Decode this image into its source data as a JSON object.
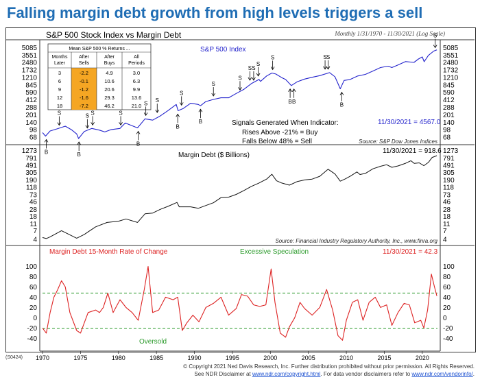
{
  "page_title": "Falling margin debt growth from high levels triggers a sell",
  "panel1_title": "S&P 500 Stock Index vs Margin Debt",
  "range_note": "Monthly 1/31/1970 - 11/30/2021 (Log Scale)",
  "series1_label": "S&P 500 Index",
  "series1_last": "11/30/2021 = 4567.0",
  "signals": {
    "heading": "Signals Generated When Indicator:",
    "buy": "Rises Above -21% = Buy",
    "sell": "Falls Below 48% = Sell"
  },
  "source1": "Source: S&P Dow Jones Indices",
  "returns_table": {
    "title": "Mean S&P 500 % Returns ...",
    "headers": [
      "Months\nLater",
      "After\nSells",
      "After\nBuys",
      "All\nPeriods"
    ],
    "rows": [
      [
        "3",
        "-2.2",
        "4.9",
        "3.0"
      ],
      [
        "6",
        "-0.1",
        "10.6",
        "6.3"
      ],
      [
        "9",
        "-1.2",
        "20.6",
        "9.9"
      ],
      [
        "12",
        "-1.6",
        "29.3",
        "13.6"
      ],
      [
        "18",
        "-7.2",
        "46.2",
        "21.0"
      ]
    ],
    "highlight_color": "#f5a623"
  },
  "series2_label": "Margin Debt ($ Billions)",
  "series2_last": "11/30/2021 = 918.6",
  "source2": "Source: Financial Industry Regulatory Authority, Inc., www.finra.org",
  "series3_label": "Margin Debt 15-Month Rate of Change",
  "series3_last": "11/30/2021 = 42.3",
  "excessive_label": "Excessive Speculation",
  "oversold_label": "Oversold",
  "chart_code": "(S0424)",
  "footer": {
    "line1": "© Copyright 2021 Ned Davis Research, Inc. Further distribution prohibited without prior permission. All Rights Reserved.",
    "line2_pre": "See NDR Disclaimer at ",
    "link1": "www.ndr.com/copyright.html",
    "line2_mid": ". For data vendor disclaimers refer to ",
    "link2": "www.ndr.com/vendorinfo/",
    "line2_post": "."
  },
  "colors": {
    "title": "#1f6db4",
    "sp500": "#2222cc",
    "margin": "#111111",
    "roc": "#dd2222",
    "threshold": "#2a9a2a",
    "table_highlight": "#f5a623"
  },
  "chart_data": [
    {
      "type": "line",
      "title": "S&P 500 Stock Index",
      "scale": "log",
      "yticks": [
        68,
        98,
        140,
        201,
        288,
        412,
        590,
        845,
        1210,
        1732,
        2480,
        3551,
        5085
      ],
      "ylim": [
        62,
        5700
      ],
      "xlim": [
        1970.0,
        2022.0
      ],
      "points": [
        [
          1970.0,
          85
        ],
        [
          1970.4,
          72
        ],
        [
          1971.0,
          92
        ],
        [
          1972.0,
          103
        ],
        [
          1973.0,
          116
        ],
        [
          1973.8,
          98
        ],
        [
          1974.5,
          80
        ],
        [
          1974.75,
          64
        ],
        [
          1975.5,
          90
        ],
        [
          1976.5,
          104
        ],
        [
          1977.5,
          96
        ],
        [
          1978.2,
          88
        ],
        [
          1979.0,
          98
        ],
        [
          1980.2,
          104
        ],
        [
          1980.9,
          135
        ],
        [
          1982.5,
          107
        ],
        [
          1983.5,
          165
        ],
        [
          1984.5,
          155
        ],
        [
          1985.5,
          190
        ],
        [
          1986.5,
          245
        ],
        [
          1987.6,
          330
        ],
        [
          1987.85,
          245
        ],
        [
          1988.5,
          270
        ],
        [
          1989.5,
          350
        ],
        [
          1990.5,
          330
        ],
        [
          1990.8,
          310
        ],
        [
          1991.5,
          380
        ],
        [
          1992.5,
          420
        ],
        [
          1993.5,
          455
        ],
        [
          1994.5,
          455
        ],
        [
          1995.5,
          560
        ],
        [
          1996.5,
          680
        ],
        [
          1997.5,
          900
        ],
        [
          1998.5,
          1100
        ],
        [
          1998.7,
          1000
        ],
        [
          1999.5,
          1300
        ],
        [
          2000.2,
          1500
        ],
        [
          2000.7,
          1430
        ],
        [
          2001.5,
          1200
        ],
        [
          2002.0,
          1100
        ],
        [
          2002.75,
          820
        ],
        [
          2003.5,
          980
        ],
        [
          2004.5,
          1120
        ],
        [
          2005.5,
          1220
        ],
        [
          2006.5,
          1320
        ],
        [
          2007.8,
          1530
        ],
        [
          2008.5,
          1250
        ],
        [
          2008.9,
          900
        ],
        [
          2009.2,
          700
        ],
        [
          2009.7,
          1050
        ],
        [
          2010.5,
          1100
        ],
        [
          2011.5,
          1300
        ],
        [
          2012.5,
          1400
        ],
        [
          2013.5,
          1650
        ],
        [
          2014.5,
          1950
        ],
        [
          2015.5,
          2080
        ],
        [
          2016.0,
          1950
        ],
        [
          2016.8,
          2200
        ],
        [
          2017.8,
          2600
        ],
        [
          2018.9,
          2500
        ],
        [
          2019.5,
          2950
        ],
        [
          2020.0,
          3250
        ],
        [
          2020.25,
          2580
        ],
        [
          2020.8,
          3500
        ],
        [
          2021.5,
          4300
        ],
        [
          2021.92,
          4567
        ]
      ],
      "signals": [
        {
          "x": 1970.5,
          "type": "B"
        },
        {
          "x": 1972.2,
          "type": "S"
        },
        {
          "x": 1974.8,
          "type": "B"
        },
        {
          "x": 1975.9,
          "type": "S"
        },
        {
          "x": 1976.6,
          "type": "S"
        },
        {
          "x": 1980.3,
          "type": "S"
        },
        {
          "x": 1982.6,
          "type": "B"
        },
        {
          "x": 1983.6,
          "type": "S"
        },
        {
          "x": 1985.1,
          "type": "S"
        },
        {
          "x": 1987.8,
          "type": "B"
        },
        {
          "x": 1988.3,
          "type": "S"
        },
        {
          "x": 1990.8,
          "type": "B"
        },
        {
          "x": 1992.5,
          "type": "S"
        },
        {
          "x": 1996.0,
          "type": "S"
        },
        {
          "x": 1997.3,
          "type": "S"
        },
        {
          "x": 1997.8,
          "type": "S"
        },
        {
          "x": 1998.4,
          "type": "S"
        },
        {
          "x": 2000.3,
          "type": "S"
        },
        {
          "x": 2002.6,
          "type": "B"
        },
        {
          "x": 2003.1,
          "type": "B"
        },
        {
          "x": 2007.2,
          "type": "S"
        },
        {
          "x": 2007.6,
          "type": "S"
        },
        {
          "x": 2009.4,
          "type": "B"
        },
        {
          "x": 2021.7,
          "type": "S"
        }
      ]
    },
    {
      "type": "line",
      "title": "Margin Debt ($ Billions)",
      "scale": "log",
      "yticks": [
        4,
        7,
        11,
        18,
        28,
        46,
        73,
        118,
        190,
        305,
        491,
        791,
        1273
      ],
      "ylim": [
        3.5,
        1500
      ],
      "xlim": [
        1970.0,
        2022.0
      ],
      "points": [
        [
          1970.0,
          4.5
        ],
        [
          1970.5,
          4.2
        ],
        [
          1971.0,
          4.7
        ],
        [
          1972.5,
          7.0
        ],
        [
          1973.5,
          5.5
        ],
        [
          1974.5,
          4.3
        ],
        [
          1975.5,
          5.5
        ],
        [
          1977.0,
          9.0
        ],
        [
          1978.5,
          12
        ],
        [
          1980.0,
          13
        ],
        [
          1981.0,
          15
        ],
        [
          1982.5,
          12
        ],
        [
          1983.5,
          21
        ],
        [
          1984.5,
          22
        ],
        [
          1985.5,
          28
        ],
        [
          1986.5,
          34
        ],
        [
          1987.7,
          44
        ],
        [
          1988.0,
          33
        ],
        [
          1989.5,
          33
        ],
        [
          1990.5,
          30
        ],
        [
          1991.5,
          36
        ],
        [
          1992.5,
          43
        ],
        [
          1993.5,
          60
        ],
        [
          1994.5,
          62
        ],
        [
          1995.5,
          74
        ],
        [
          1996.5,
          95
        ],
        [
          1997.5,
          125
        ],
        [
          1998.5,
          155
        ],
        [
          1999.5,
          200
        ],
        [
          2000.2,
          275
        ],
        [
          2000.8,
          180
        ],
        [
          2001.5,
          155
        ],
        [
          2002.5,
          135
        ],
        [
          2003.5,
          170
        ],
        [
          2004.5,
          190
        ],
        [
          2005.5,
          200
        ],
        [
          2006.5,
          240
        ],
        [
          2007.6,
          380
        ],
        [
          2008.5,
          280
        ],
        [
          2009.2,
          175
        ],
        [
          2009.8,
          200
        ],
        [
          2010.5,
          240
        ],
        [
          2011.4,
          320
        ],
        [
          2011.8,
          270
        ],
        [
          2012.5,
          290
        ],
        [
          2013.5,
          390
        ],
        [
          2014.5,
          460
        ],
        [
          2015.3,
          510
        ],
        [
          2016.0,
          430
        ],
        [
          2016.8,
          470
        ],
        [
          2017.8,
          560
        ],
        [
          2018.5,
          660
        ],
        [
          2018.95,
          555
        ],
        [
          2019.6,
          575
        ],
        [
          2020.2,
          480
        ],
        [
          2020.8,
          590
        ],
        [
          2021.3,
          820
        ],
        [
          2021.92,
          918.6
        ]
      ]
    },
    {
      "type": "line",
      "title": "Margin Debt 15-Month Rate of Change",
      "scale": "linear",
      "yticks": [
        -40,
        -20,
        0,
        20,
        40,
        60,
        80,
        100
      ],
      "ylim": [
        -45,
        110
      ],
      "xlim": [
        1970.0,
        2022.0
      ],
      "thresholds": [
        48,
        -21
      ],
      "points": [
        [
          1970.0,
          -20
        ],
        [
          1970.5,
          -30
        ],
        [
          1971.0,
          10
        ],
        [
          1971.5,
          40
        ],
        [
          1972.0,
          55
        ],
        [
          1972.5,
          72
        ],
        [
          1973.0,
          60
        ],
        [
          1973.6,
          10
        ],
        [
          1974.5,
          -25
        ],
        [
          1975.0,
          -30
        ],
        [
          1975.5,
          -10
        ],
        [
          1976.0,
          10
        ],
        [
          1977.0,
          15
        ],
        [
          1977.5,
          10
        ],
        [
          1978.0,
          20
        ],
        [
          1978.6,
          48
        ],
        [
          1979.3,
          10
        ],
        [
          1980.2,
          35
        ],
        [
          1981.0,
          20
        ],
        [
          1981.8,
          10
        ],
        [
          1982.6,
          -5
        ],
        [
          1983.4,
          55
        ],
        [
          1983.9,
          100
        ],
        [
          1984.5,
          10
        ],
        [
          1985.3,
          15
        ],
        [
          1986.2,
          40
        ],
        [
          1987.2,
          35
        ],
        [
          1987.8,
          40
        ],
        [
          1988.4,
          -25
        ],
        [
          1989.0,
          -10
        ],
        [
          1989.8,
          5
        ],
        [
          1990.6,
          -8
        ],
        [
          1991.5,
          20
        ],
        [
          1992.5,
          28
        ],
        [
          1993.5,
          40
        ],
        [
          1994.5,
          5
        ],
        [
          1995.5,
          18
        ],
        [
          1996.2,
          45
        ],
        [
          1997.0,
          42
        ],
        [
          1997.8,
          25
        ],
        [
          1998.6,
          22
        ],
        [
          1999.4,
          25
        ],
        [
          2000.1,
          95
        ],
        [
          2000.6,
          30
        ],
        [
          2001.3,
          -30
        ],
        [
          2002.0,
          -38
        ],
        [
          2002.5,
          -18
        ],
        [
          2003.2,
          0
        ],
        [
          2003.9,
          30
        ],
        [
          2004.5,
          18
        ],
        [
          2005.5,
          5
        ],
        [
          2006.5,
          20
        ],
        [
          2007.4,
          55
        ],
        [
          2008.2,
          15
        ],
        [
          2008.9,
          -35
        ],
        [
          2009.5,
          -44
        ],
        [
          2010.0,
          -5
        ],
        [
          2010.8,
          30
        ],
        [
          2011.5,
          35
        ],
        [
          2012.2,
          -5
        ],
        [
          2013.0,
          30
        ],
        [
          2013.8,
          40
        ],
        [
          2014.5,
          20
        ],
        [
          2015.3,
          25
        ],
        [
          2016.0,
          -15
        ],
        [
          2016.8,
          10
        ],
        [
          2017.6,
          28
        ],
        [
          2018.3,
          25
        ],
        [
          2019.0,
          -10
        ],
        [
          2019.8,
          -5
        ],
        [
          2020.2,
          -20
        ],
        [
          2020.7,
          15
        ],
        [
          2021.2,
          85
        ],
        [
          2021.6,
          60
        ],
        [
          2021.92,
          42.3
        ]
      ],
      "xticks": [
        "1970",
        "1975",
        "1980",
        "1985",
        "1990",
        "1995",
        "2000",
        "2005",
        "2010",
        "2015",
        "2020"
      ]
    }
  ]
}
